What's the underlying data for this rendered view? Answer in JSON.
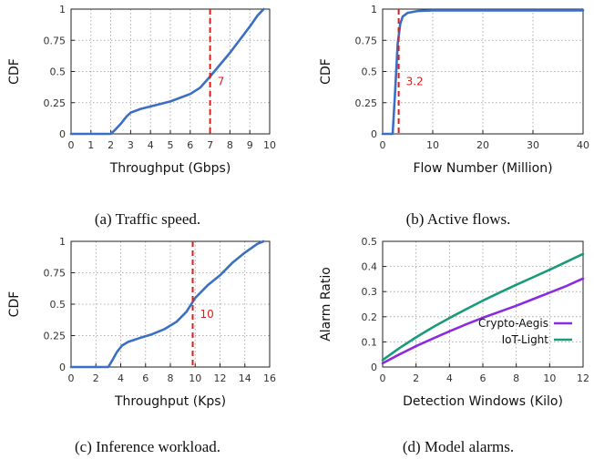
{
  "chart_data": [
    {
      "type": "line",
      "ylabel": "CDF",
      "xlabel": "Throughput (Gbps)",
      "caption": "(a) Traffic speed.",
      "xlim": [
        0,
        10
      ],
      "ylim": [
        0,
        1
      ],
      "xticks": [
        0,
        1,
        2,
        3,
        4,
        5,
        6,
        7,
        8,
        9,
        10
      ],
      "yticks": [
        0,
        0.25,
        0.5,
        0.75,
        1
      ],
      "ytick_labels": [
        "0",
        "0.25",
        "0.5",
        "0.75",
        "1"
      ],
      "grid": true,
      "series": [
        {
          "color": "#3b6fc4",
          "x": [
            0,
            2.0,
            2.2,
            2.5,
            2.8,
            3.0,
            3.5,
            4.0,
            5.0,
            6.0,
            6.5,
            7.0,
            8.0,
            9.0,
            9.4,
            9.7
          ],
          "y": [
            0,
            0,
            0.03,
            0.08,
            0.14,
            0.17,
            0.2,
            0.22,
            0.26,
            0.32,
            0.37,
            0.46,
            0.65,
            0.86,
            0.95,
            1.0
          ]
        }
      ],
      "vline": {
        "x": 7,
        "label": "7",
        "color": "#e01b1b"
      }
    },
    {
      "type": "line",
      "ylabel": "CDF",
      "xlabel": "Flow Number (Million)",
      "caption": "(b) Active flows.",
      "xlim": [
        0,
        40
      ],
      "ylim": [
        0,
        1
      ],
      "xticks": [
        0,
        10,
        20,
        30,
        40
      ],
      "yticks": [
        0,
        0.25,
        0.5,
        0.75,
        1
      ],
      "ytick_labels": [
        "0",
        "0.25",
        "0.5",
        "0.75",
        "1"
      ],
      "grid": true,
      "series": [
        {
          "color": "#3b6fc4",
          "x": [
            0,
            2.0,
            2.5,
            3.0,
            3.5,
            4.0,
            5.0,
            7.0,
            10.0,
            40.0
          ],
          "y": [
            0,
            0,
            0.35,
            0.72,
            0.88,
            0.94,
            0.97,
            0.985,
            0.99,
            0.99
          ]
        }
      ],
      "vline": {
        "x": 3.2,
        "label": "3.2",
        "color": "#e01b1b"
      }
    },
    {
      "type": "line",
      "ylabel": "CDF",
      "xlabel": "Throughput (Kps)",
      "caption": "(c) Inference workload.",
      "xlim": [
        0,
        16
      ],
      "ylim": [
        0,
        1
      ],
      "xticks": [
        0,
        2,
        4,
        6,
        8,
        10,
        12,
        14,
        16
      ],
      "yticks": [
        0,
        0.25,
        0.5,
        0.75,
        1
      ],
      "ytick_labels": [
        "0",
        "0.25",
        "0.5",
        "0.75",
        "1"
      ],
      "grid": true,
      "series": [
        {
          "color": "#3b6fc4",
          "x": [
            0,
            3.0,
            3.3,
            3.7,
            4.1,
            4.6,
            5.5,
            6.5,
            7.5,
            8.5,
            9.3,
            10.0,
            11.0,
            12.0,
            13.0,
            14.0,
            15.0,
            15.5
          ],
          "y": [
            0,
            0,
            0.05,
            0.12,
            0.17,
            0.2,
            0.23,
            0.26,
            0.3,
            0.36,
            0.44,
            0.55,
            0.65,
            0.73,
            0.83,
            0.91,
            0.98,
            1.0
          ]
        }
      ],
      "vline": {
        "x": 9.8,
        "label": "10",
        "color": "#e01b1b"
      }
    },
    {
      "type": "line",
      "ylabel": "Alarm Ratio",
      "xlabel": "Detection Windows (Kilo)",
      "caption": "(d) Model alarms.",
      "xlim": [
        0,
        12
      ],
      "ylim": [
        0,
        0.5
      ],
      "xticks": [
        0,
        2,
        4,
        6,
        8,
        10,
        12
      ],
      "yticks": [
        0,
        0.1,
        0.2,
        0.3,
        0.4,
        0.5
      ],
      "ytick_labels": [
        "0",
        "0.1",
        "0.2",
        "0.3",
        "0.4",
        "0.5"
      ],
      "grid": true,
      "legend": "bottom-right",
      "series": [
        {
          "name": "Crypto-Aegis",
          "color": "#8a2be2",
          "x": [
            0,
            1,
            2,
            3,
            4,
            5,
            6,
            7,
            8,
            9,
            10,
            11,
            12
          ],
          "y": [
            0.015,
            0.05,
            0.083,
            0.113,
            0.142,
            0.17,
            0.196,
            0.22,
            0.244,
            0.27,
            0.296,
            0.322,
            0.352
          ]
        },
        {
          "name": "IoT-Light",
          "color": "#1a9a7a",
          "x": [
            0,
            1,
            2,
            3,
            4,
            5,
            6,
            7,
            8,
            9,
            10,
            11,
            12
          ],
          "y": [
            0.028,
            0.075,
            0.118,
            0.158,
            0.195,
            0.23,
            0.264,
            0.296,
            0.327,
            0.357,
            0.387,
            0.418,
            0.45
          ]
        }
      ]
    }
  ]
}
